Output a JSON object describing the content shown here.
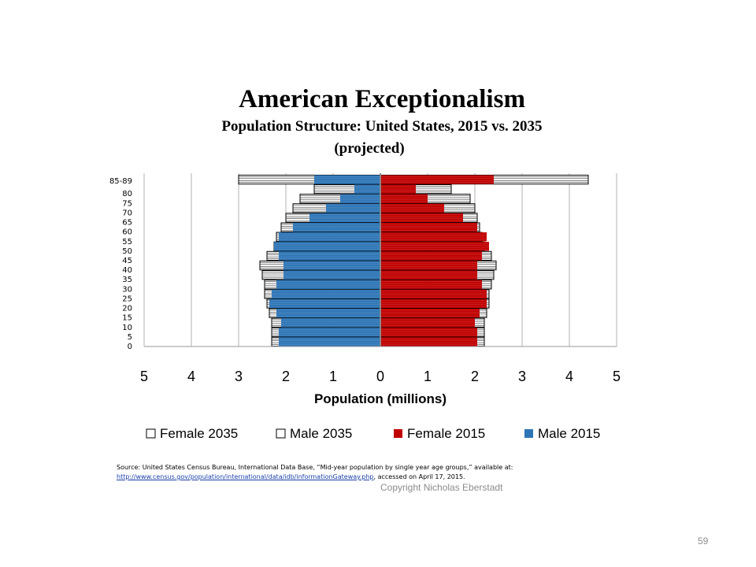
{
  "slide": {
    "source_prefix": "Source:  United States Census Bureau, International Data Base, “Mid-year population by single year age groups,” available at:",
    "source_link": "http://www.census.gov/population/international/data/idb/informationGateway.php",
    "source_suffix": ", accessed on April 17, 2015.",
    "copyright": "Copyright Nicholas Eberstadt",
    "page_number": "59"
  },
  "chart_data": {
    "type": "bar",
    "orientation": "horizontal",
    "chart_style": "population-pyramid",
    "title": "American  Exceptionalism",
    "subtitle_line1": "Population Structure: United States, 2015 vs. 2035",
    "subtitle_line2": "(projected)",
    "xlabel": "Population (millions)",
    "xlim": [
      -5,
      5
    ],
    "x_ticks": [
      -5,
      -4,
      -3,
      -2,
      -1,
      0,
      1,
      2,
      3,
      4,
      5
    ],
    "x_tick_labels": [
      "5",
      "4",
      "3",
      "2",
      "1",
      "0",
      "1",
      "2",
      "3",
      "4",
      "5"
    ],
    "y_tick_labels": [
      "0",
      "5",
      "10",
      "15",
      "20",
      "25",
      "30",
      "35",
      "40",
      "45",
      "50",
      "55",
      "60",
      "65",
      "70",
      "75",
      "80",
      "85-89"
    ],
    "grid": "vertical",
    "legend_position": "bottom",
    "categories": [
      "0-4",
      "5-9",
      "10-14",
      "15-19",
      "20-24",
      "25-29",
      "30-34",
      "35-39",
      "40-44",
      "45-49",
      "50-54",
      "55-59",
      "60-64",
      "65-69",
      "70-74",
      "75-79",
      "80-84",
      "85-89"
    ],
    "series": [
      {
        "name": "Female 2035",
        "side": "right",
        "color": "#ffffff",
        "values": [
          2.2,
          2.2,
          2.2,
          2.25,
          2.3,
          2.3,
          2.35,
          2.4,
          2.45,
          2.35,
          2.2,
          2.15,
          2.1,
          2.05,
          2.0,
          1.9,
          1.5,
          4.4
        ]
      },
      {
        "name": "Male 2035",
        "side": "left",
        "color": "#ffffff",
        "values": [
          2.3,
          2.3,
          2.3,
          2.35,
          2.4,
          2.45,
          2.45,
          2.5,
          2.55,
          2.4,
          2.25,
          2.2,
          2.1,
          2.0,
          1.85,
          1.7,
          1.4,
          3.0
        ]
      },
      {
        "name": "Female 2015",
        "side": "right",
        "color": "#c00000",
        "values": [
          2.05,
          2.05,
          2.0,
          2.1,
          2.25,
          2.25,
          2.15,
          2.05,
          2.05,
          2.15,
          2.3,
          2.25,
          2.05,
          1.75,
          1.35,
          1.0,
          0.75,
          2.4
        ]
      },
      {
        "name": "Male 2015",
        "side": "left",
        "color": "#2e75b6",
        "values": [
          2.15,
          2.15,
          2.1,
          2.2,
          2.35,
          2.3,
          2.2,
          2.05,
          2.05,
          2.15,
          2.25,
          2.15,
          1.85,
          1.5,
          1.15,
          0.85,
          0.55,
          1.4
        ]
      }
    ]
  }
}
